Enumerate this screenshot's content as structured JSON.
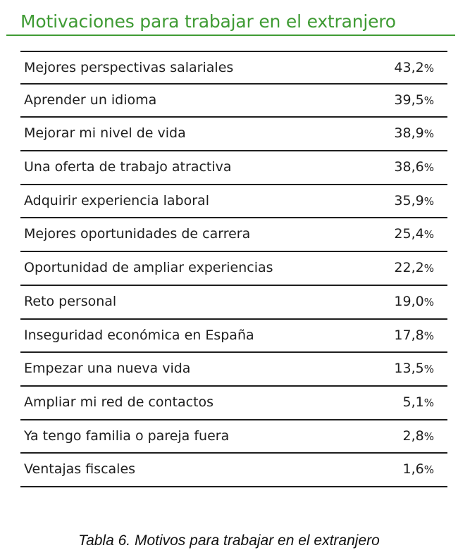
{
  "title": "Motivaciones para trabajar en el extranjero",
  "rows": [
    {
      "label": "Mejores perspectivas salariales",
      "value": "43,2",
      "unit": "%"
    },
    {
      "label": "Aprender un idioma",
      "value": "39,5",
      "unit": "%"
    },
    {
      "label": "Mejorar mi nivel de vida",
      "value": "38,9",
      "unit": "%"
    },
    {
      "label": "Una oferta de trabajo atractiva",
      "value": "38,6",
      "unit": "%"
    },
    {
      "label": "Adquirir experiencia laboral",
      "value": "35,9",
      "unit": "%"
    },
    {
      "label": "Mejores oportunidades de carrera",
      "value": "25,4",
      "unit": "%"
    },
    {
      "label": "Oportunidad de ampliar experiencias",
      "value": "22,2",
      "unit": "%"
    },
    {
      "label": "Reto personal",
      "value": "19,0",
      "unit": "%"
    },
    {
      "label": "Inseguridad económica en España",
      "value": "17,8",
      "unit": "%"
    },
    {
      "label": "Empezar una nueva vida",
      "value": "13,5",
      "unit": "%"
    },
    {
      "label": "Ampliar mi red de contactos",
      "value": "5,1",
      "unit": "%"
    },
    {
      "label": "Ya tengo familia o pareja fuera",
      "value": "2,8",
      "unit": "%"
    },
    {
      "label": "Ventajas fiscales",
      "value": "1,6",
      "unit": "%"
    }
  ],
  "caption": "Tabla 6. Motivos para trabajar en el extranjero",
  "colors": {
    "title_green": "#3f9b34",
    "text": "#1e1e1e"
  }
}
